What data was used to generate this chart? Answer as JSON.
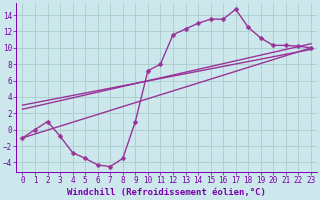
{
  "xlabel": "Windchill (Refroidissement éolien,°C)",
  "bg_color": "#cce8ec",
  "grid_color": "#aacccc",
  "line_color": "#993399",
  "xlim": [
    -0.5,
    23.5
  ],
  "ylim": [
    -5.2,
    15.5
  ],
  "xticks": [
    0,
    1,
    2,
    3,
    4,
    5,
    6,
    7,
    8,
    9,
    10,
    11,
    12,
    13,
    14,
    15,
    16,
    17,
    18,
    19,
    20,
    21,
    22,
    23
  ],
  "yticks": [
    -4,
    -2,
    0,
    2,
    4,
    6,
    8,
    10,
    12,
    14
  ],
  "line1_x": [
    0,
    1,
    2,
    3,
    4,
    5,
    6,
    7,
    8,
    9,
    10,
    11,
    12,
    13,
    14,
    15,
    16,
    17,
    18,
    19,
    20,
    21,
    22,
    23
  ],
  "line1_y": [
    -1.0,
    0.0,
    1.0,
    -0.8,
    -2.8,
    -3.5,
    -4.3,
    -4.5,
    -3.5,
    1.0,
    7.2,
    8.0,
    11.6,
    12.3,
    13.0,
    13.5,
    13.5,
    14.7,
    12.5,
    11.2,
    10.3,
    10.3,
    10.2,
    10.0
  ],
  "line2_x": [
    0,
    23
  ],
  "line2_y": [
    -1.0,
    10.0
  ],
  "line3_x": [
    0,
    23
  ],
  "line3_y": [
    2.5,
    10.5
  ],
  "line4_x": [
    0,
    23
  ],
  "line4_y": [
    3.0,
    9.8
  ],
  "markersize": 2.5,
  "linewidth": 1.0,
  "xlabel_fontsize": 6.5,
  "tick_fontsize": 5.5,
  "tick_color": "#7700aa",
  "axis_color": "#7700aa"
}
